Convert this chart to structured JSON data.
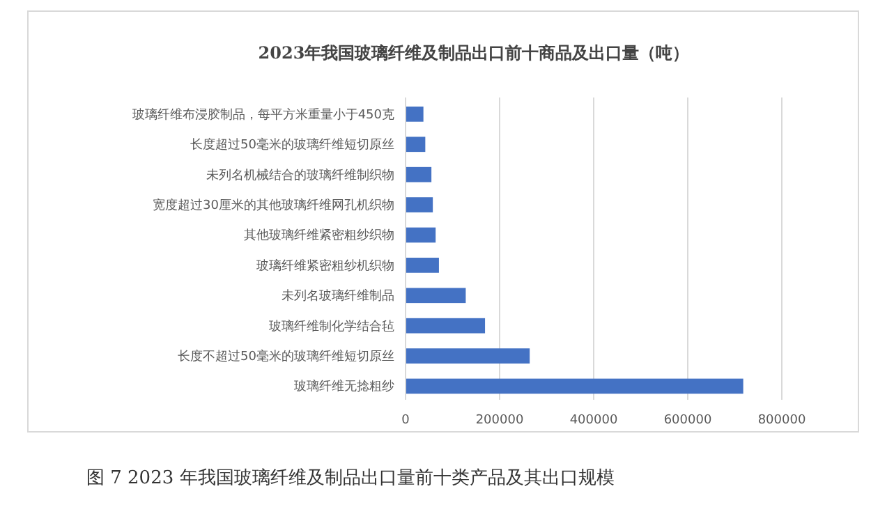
{
  "chart_data": {
    "type": "bar",
    "orientation": "horizontal",
    "title": "2023年我国玻璃纤维及制品出口前十商品及出口量（吨）",
    "categories": [
      "玻璃纤维布浸胶制品，每平方米重量小于450克",
      "长度超过50毫米的玻璃纤维短切原丝",
      "未列名机械结合的玻璃纤维制织物",
      "宽度超过30厘米的其他玻璃纤维网孔机织物",
      "其他玻璃纤维紧密粗纱织物",
      "玻璃纤维紧密粗纱机织物",
      "未列名玻璃纤维制品",
      "玻璃纤维制化学结合毡",
      "长度不超过50毫米的玻璃纤维短切原丝",
      "玻璃纤维无捻粗纱"
    ],
    "values": [
      38000,
      42000,
      55000,
      58000,
      64000,
      71000,
      128000,
      169000,
      264000,
      718000
    ],
    "color": "#4472c4",
    "xlim": [
      0,
      800000
    ],
    "xticks": [
      0,
      200000,
      400000,
      600000,
      800000
    ],
    "grid": "x",
    "annotations": [
      "图 7 2023 年我国玻璃纤维及制品出口量前十类产品及其出口规模"
    ]
  }
}
